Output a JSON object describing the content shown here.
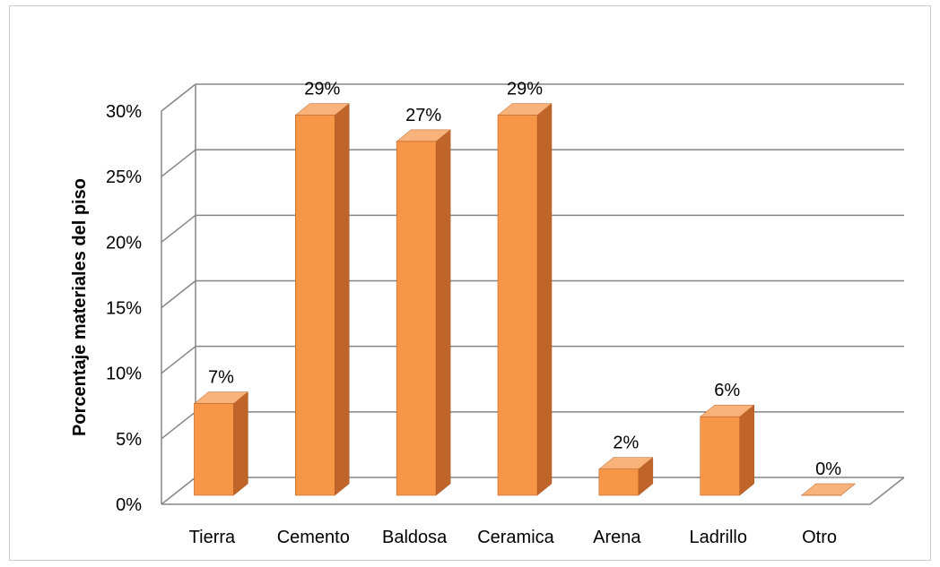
{
  "chart_data": {
    "type": "bar",
    "style": "3d-column",
    "categories": [
      "Tierra",
      "Cemento",
      "Baldosa",
      "Ceramica",
      "Arena",
      "Ladrillo",
      "Otro"
    ],
    "values": [
      7,
      29,
      27,
      29,
      2,
      6,
      0
    ],
    "data_labels": [
      "7%",
      "29%",
      "27%",
      "29%",
      "2%",
      "6%",
      "0%"
    ],
    "title": "",
    "xlabel": "",
    "ylabel": "Porcentaje materiales del piso",
    "ylim": [
      0,
      30
    ],
    "yticks": [
      0,
      5,
      10,
      15,
      20,
      25,
      30
    ],
    "ytick_labels": [
      "0%",
      "5%",
      "10%",
      "15%",
      "20%",
      "25%",
      "30%"
    ],
    "grid": true,
    "legend": "none",
    "colors": {
      "bar_front": "#F79646",
      "bar_side": "#C0652A",
      "bar_top": "#F9B27A",
      "gridline": "#858585"
    }
  }
}
